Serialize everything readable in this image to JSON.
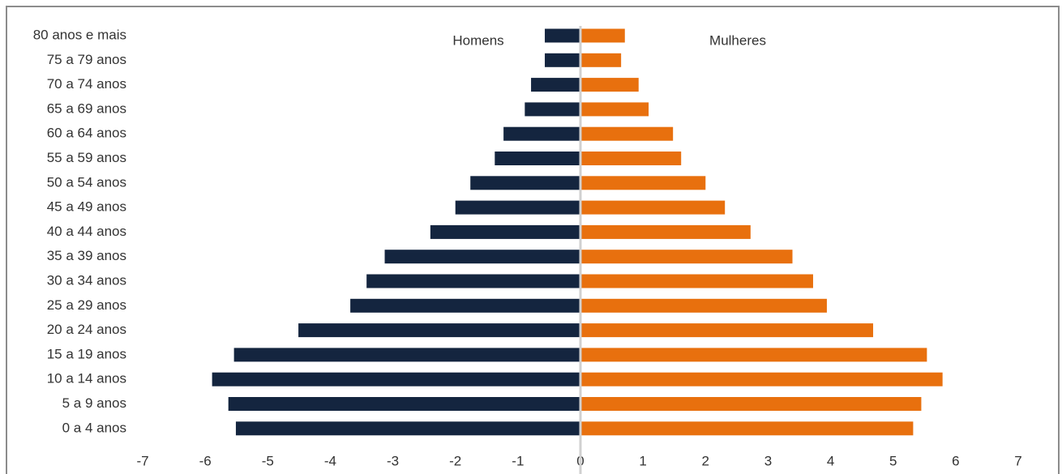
{
  "chart_data": {
    "type": "bar",
    "orientation": "horizontal",
    "categories": [
      "80 anos e mais",
      "75 a 79 anos",
      "70 a 74 anos",
      "65 a 69 anos",
      "60 a 64 anos",
      "55 a 59 anos",
      "50 a 54 anos",
      "45 a 49 anos",
      "40 a 44 anos",
      "35 a 39 anos",
      "30 a 34 anos",
      "25 a 29 anos",
      "20 a 24 anos",
      "15 a 19 anos",
      "10 a 14 anos",
      "5 a 9 anos",
      "0 a 4 anos"
    ],
    "series": [
      {
        "name": "Homens",
        "color": "#14253f",
        "values": [
          -0.57,
          -0.57,
          -0.79,
          -0.89,
          -1.23,
          -1.37,
          -1.76,
          -2.0,
          -2.4,
          -3.13,
          -3.42,
          -3.68,
          -4.51,
          -5.54,
          -5.89,
          -5.63,
          -5.51
        ]
      },
      {
        "name": "Mulheres",
        "color": "#e8700e",
        "values": [
          0.71,
          0.65,
          0.93,
          1.09,
          1.48,
          1.61,
          2.0,
          2.31,
          2.72,
          3.39,
          3.72,
          3.94,
          4.68,
          5.54,
          5.79,
          5.45,
          5.32
        ]
      }
    ],
    "xlim": [
      -7,
      7
    ],
    "xticks": [
      -7,
      -6,
      -5,
      -4,
      -3,
      -2,
      -1,
      0,
      1,
      2,
      3,
      4,
      5,
      6,
      7
    ]
  }
}
